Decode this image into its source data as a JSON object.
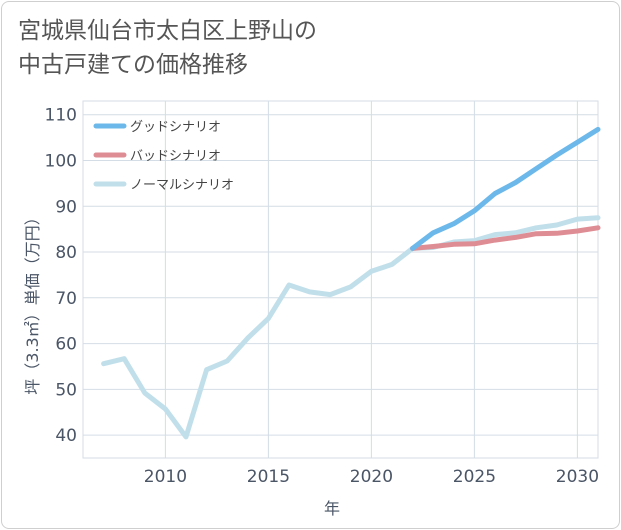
{
  "title": {
    "line1": "宮城県仙台市太白区上野山の",
    "line2": "中古戸建ての価格推移"
  },
  "chart_data": {
    "type": "line",
    "xlabel": "年",
    "ylabel": "坪（3.3㎡）単価（万円）",
    "xlim": [
      2006,
      2031
    ],
    "ylim": [
      35,
      113
    ],
    "x_ticks": [
      2010,
      2015,
      2020,
      2025,
      2030
    ],
    "y_ticks": [
      40,
      50,
      60,
      70,
      80,
      90,
      100,
      110
    ],
    "grid": true,
    "legend_position": "top-left",
    "series": [
      {
        "name": "グッドシナリオ",
        "color": "#6cb8ea",
        "x": [
          2022,
          2023,
          2024,
          2025,
          2026,
          2027,
          2028,
          2029,
          2030,
          2031
        ],
        "y": [
          80.8,
          84.2,
          86.2,
          89.0,
          92.8,
          95.2,
          98.2,
          101.2,
          104.0,
          106.8
        ]
      },
      {
        "name": "バッドシナリオ",
        "color": "#df8d94",
        "x": [
          2022,
          2023,
          2024,
          2025,
          2026,
          2027,
          2028,
          2029,
          2030,
          2031
        ],
        "y": [
          80.8,
          81.2,
          81.7,
          81.8,
          82.6,
          83.2,
          84.0,
          84.1,
          84.6,
          85.3
        ]
      },
      {
        "name": "ノーマルシナリオ",
        "color": "#c1dfea",
        "x": [
          2007,
          2008,
          2009,
          2010,
          2011,
          2012,
          2013,
          2014,
          2015,
          2016,
          2017,
          2018,
          2019,
          2020,
          2021,
          2022,
          2023,
          2024,
          2025,
          2026,
          2027,
          2028,
          2029,
          2030,
          2031
        ],
        "y": [
          55.6,
          56.7,
          49.2,
          45.7,
          39.6,
          54.3,
          56.2,
          61.2,
          65.5,
          72.8,
          71.3,
          70.7,
          72.4,
          75.8,
          77.3,
          80.8,
          81.0,
          82.2,
          82.5,
          83.8,
          84.2,
          85.3,
          85.9,
          87.2,
          87.5
        ]
      }
    ]
  }
}
